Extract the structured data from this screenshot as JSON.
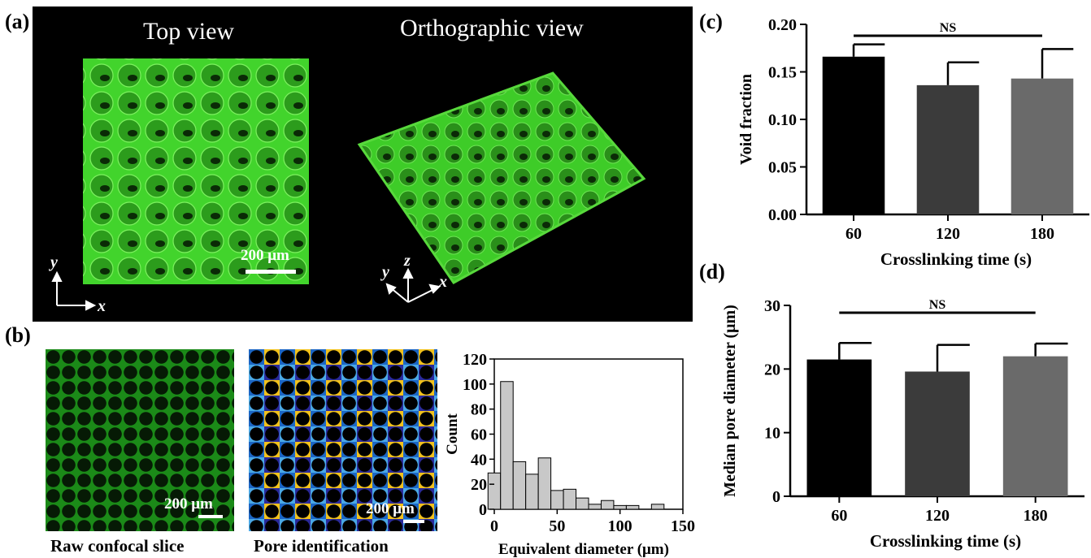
{
  "panel_a": {
    "label": "(a)",
    "left_title": "Top view",
    "right_title": "Orthographic view",
    "scale_label": "200 μm",
    "axis_top": {
      "y": "y",
      "x": "x"
    },
    "axis_ortho": {
      "y": "y",
      "z": "z",
      "x": "x"
    },
    "colors": {
      "foam": "#3fd62a",
      "background": "#000000"
    }
  },
  "panel_b": {
    "label": "(b)",
    "raw_caption": "Raw confocal slice",
    "pore_caption": "Pore identification",
    "raw_scale_label": "200 μm",
    "pore_scale_label": "200 μm"
  },
  "panel_c": {
    "label": "(c)"
  },
  "panel_d": {
    "label": "(d)"
  },
  "chart_data": [
    {
      "type": "bar",
      "name": "histogram",
      "x_bin_centers": [
        0,
        10,
        20,
        30,
        40,
        50,
        60,
        70,
        80,
        90,
        100,
        110,
        120,
        130,
        140
      ],
      "values": [
        29,
        102,
        38,
        28,
        41,
        15,
        16,
        9,
        4,
        7,
        3,
        3,
        0,
        4,
        0
      ],
      "xlabel": "Equivalent  diameter (μm)",
      "ylabel": "Count",
      "xlim": [
        0,
        150
      ],
      "ylim": [
        0,
        120
      ],
      "xticks": [
        "0",
        "50",
        "100",
        "150"
      ],
      "yticks": [
        "0",
        "20",
        "40",
        "60",
        "80",
        "100",
        "120"
      ],
      "bar_color": "#c8c8c8"
    },
    {
      "type": "bar",
      "name": "void-fraction",
      "categories": [
        "60",
        "120",
        "180"
      ],
      "values": [
        0.166,
        0.136,
        0.143
      ],
      "errors": [
        0.013,
        0.024,
        0.031
      ],
      "xlabel": "Crosslinking time (s)",
      "ylabel": "Void fraction",
      "ylim": [
        0,
        0.2
      ],
      "yticks": [
        "0.00",
        "0.05",
        "0.10",
        "0.15",
        "0.20"
      ],
      "bar_colors": [
        "#000000",
        "#3b3b3b",
        "#6a6a6a"
      ],
      "annotation": "NS"
    },
    {
      "type": "bar",
      "name": "median-pore-diameter",
      "categories": [
        "60",
        "120",
        "180"
      ],
      "values": [
        21.5,
        19.6,
        22.0
      ],
      "errors": [
        2.6,
        4.2,
        2.0
      ],
      "xlabel": "Crosslinking time (s)",
      "ylabel": "Median pore diameter (μm)",
      "ylim": [
        0,
        30
      ],
      "yticks": [
        "0",
        "10",
        "20",
        "30"
      ],
      "bar_colors": [
        "#000000",
        "#3b3b3b",
        "#6a6a6a"
      ],
      "annotation": "NS"
    }
  ]
}
